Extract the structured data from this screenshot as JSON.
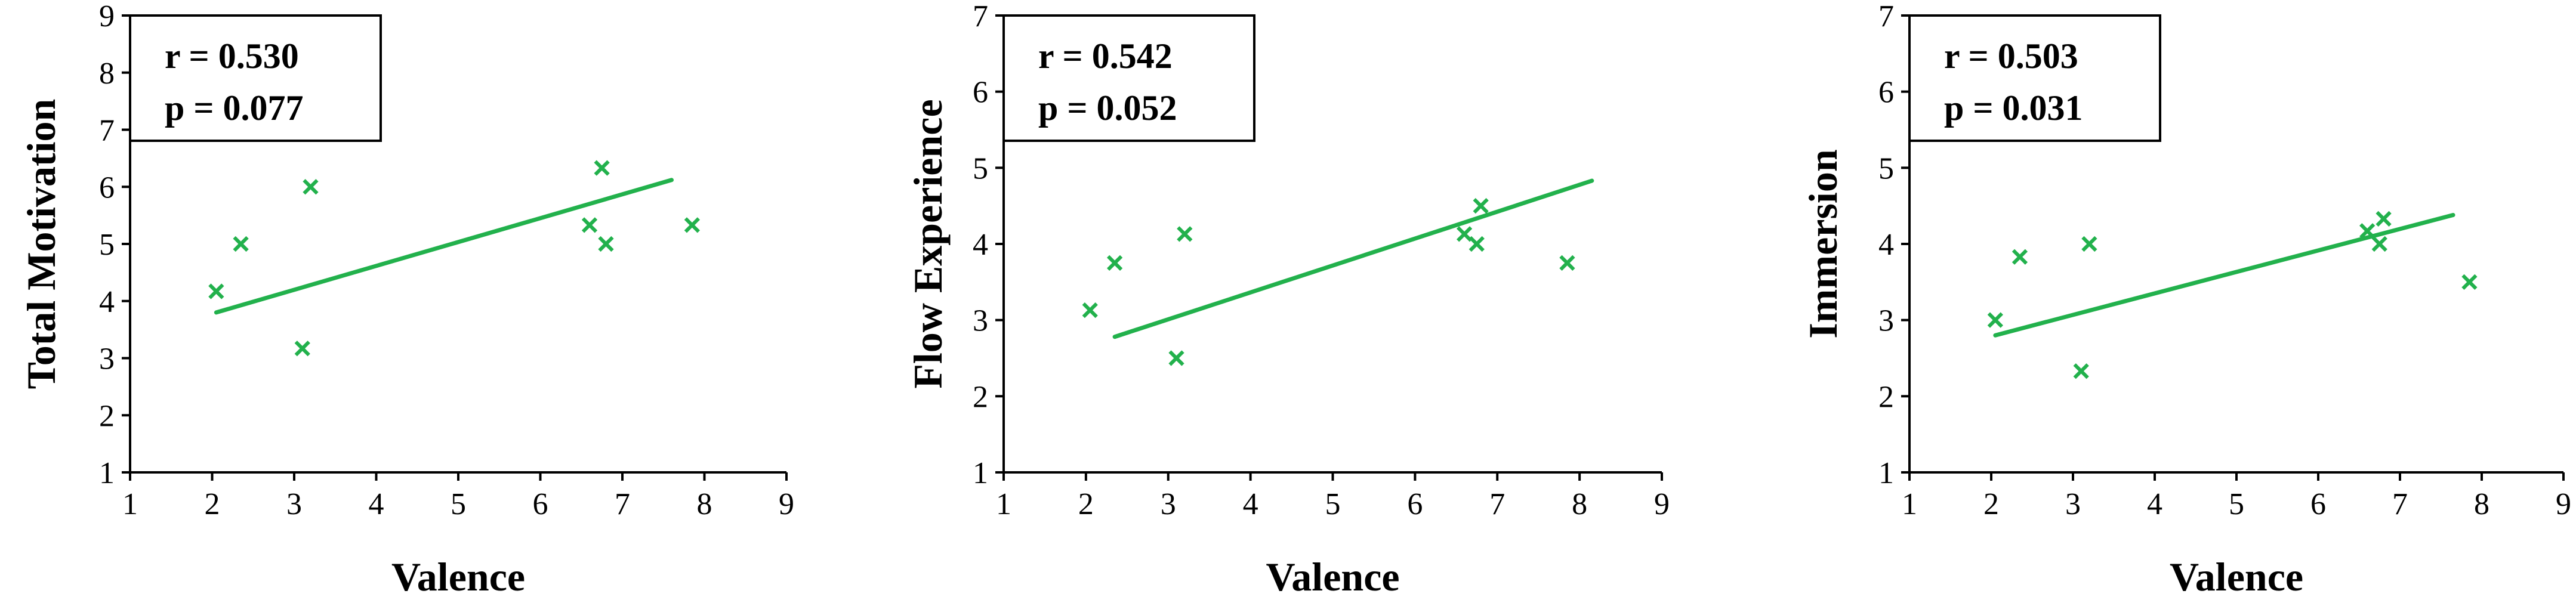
{
  "colors": {
    "marker": "#22b14c",
    "fit_line": "#22b14c",
    "axis": "#000000"
  },
  "chart_data": [
    {
      "type": "scatter",
      "xlabel": "Valence",
      "ylabel": "Total Motivation",
      "xlim": [
        1,
        9
      ],
      "ylim": [
        1,
        9
      ],
      "xticks": [
        1,
        2,
        3,
        4,
        5,
        6,
        7,
        8,
        9
      ],
      "yticks": [
        1,
        2,
        3,
        4,
        5,
        6,
        7,
        8,
        9
      ],
      "stats": {
        "r": "r = 0.530",
        "p": "p = 0.077"
      },
      "marker": "x",
      "points": [
        {
          "x": 2.05,
          "y": 4.17
        },
        {
          "x": 2.35,
          "y": 5.0
        },
        {
          "x": 3.1,
          "y": 3.17
        },
        {
          "x": 3.2,
          "y": 6.0
        },
        {
          "x": 6.6,
          "y": 5.33
        },
        {
          "x": 6.75,
          "y": 6.33
        },
        {
          "x": 6.8,
          "y": 5.0
        },
        {
          "x": 7.85,
          "y": 5.33
        }
      ],
      "fit_line": {
        "x": [
          2.05,
          7.6
        ],
        "y": [
          3.8,
          6.12
        ]
      },
      "grid": false,
      "legend": "top-left"
    },
    {
      "type": "scatter",
      "xlabel": "Valence",
      "ylabel": "Flow Experience",
      "xlim": [
        1,
        9
      ],
      "ylim": [
        1,
        7
      ],
      "xticks": [
        1,
        2,
        3,
        4,
        5,
        6,
        7,
        8,
        9
      ],
      "yticks": [
        1,
        2,
        3,
        4,
        5,
        6,
        7
      ],
      "stats": {
        "r": "r = 0.542",
        "p": "p = 0.052"
      },
      "marker": "x",
      "points": [
        {
          "x": 2.05,
          "y": 3.13
        },
        {
          "x": 2.35,
          "y": 3.75
        },
        {
          "x": 3.1,
          "y": 2.5
        },
        {
          "x": 3.2,
          "y": 4.13
        },
        {
          "x": 6.6,
          "y": 4.13
        },
        {
          "x": 6.75,
          "y": 4.0
        },
        {
          "x": 6.8,
          "y": 4.5
        },
        {
          "x": 7.85,
          "y": 3.75
        }
      ],
      "fit_line": {
        "x": [
          2.35,
          8.15
        ],
        "y": [
          2.78,
          4.83
        ]
      },
      "grid": false,
      "legend": "top-left"
    },
    {
      "type": "scatter",
      "xlabel": "Valence",
      "ylabel": "Immersion",
      "xlim": [
        1,
        9
      ],
      "ylim": [
        1,
        7
      ],
      "xticks": [
        1,
        2,
        3,
        4,
        5,
        6,
        7,
        8,
        9
      ],
      "yticks": [
        1,
        2,
        3,
        4,
        5,
        6,
        7
      ],
      "stats": {
        "r": "r = 0.503",
        "p": "p = 0.031"
      },
      "marker": "x",
      "points": [
        {
          "x": 2.05,
          "y": 3.0
        },
        {
          "x": 2.35,
          "y": 3.83
        },
        {
          "x": 3.1,
          "y": 2.33
        },
        {
          "x": 3.2,
          "y": 4.0
        },
        {
          "x": 6.6,
          "y": 4.17
        },
        {
          "x": 6.75,
          "y": 4.0
        },
        {
          "x": 6.8,
          "y": 4.33
        },
        {
          "x": 7.85,
          "y": 3.5
        }
      ],
      "fit_line": {
        "x": [
          2.05,
          7.65
        ],
        "y": [
          2.8,
          4.38
        ]
      },
      "grid": false,
      "legend": "top-left"
    }
  ]
}
